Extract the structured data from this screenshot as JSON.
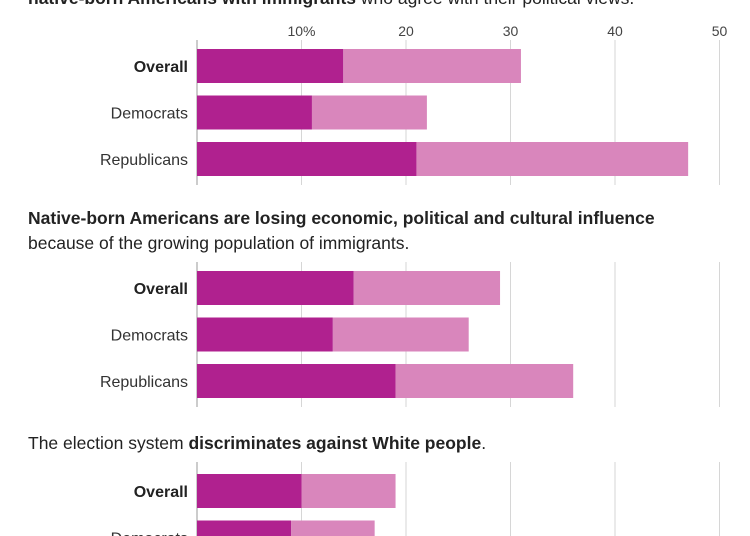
{
  "chart_data": [
    {
      "type": "bar",
      "title_segments": [
        {
          "text": "native-born Americans with immigrants",
          "bold": true
        },
        {
          "text": " who agree with their political views.",
          "bold": false
        }
      ],
      "categories": [
        "Overall",
        "Democrats",
        "Republicans"
      ],
      "series": [
        {
          "values": [
            14,
            11,
            21
          ]
        },
        {
          "values": [
            17,
            11,
            26
          ]
        }
      ],
      "x_ticks": [
        "10%",
        "20",
        "30",
        "40",
        "50"
      ],
      "xlim": [
        0,
        50
      ],
      "stacked": true,
      "grid": true
    },
    {
      "type": "bar",
      "title_lines": [
        [
          {
            "text": "Native-born Americans are losing economic, political and cultural influence",
            "bold": true
          }
        ],
        [
          {
            "text": "because of the growing population of immigrants.",
            "bold": false
          }
        ]
      ],
      "categories": [
        "Overall",
        "Democrats",
        "Republicans"
      ],
      "series": [
        {
          "values": [
            15,
            13,
            19
          ]
        },
        {
          "values": [
            14,
            13,
            17
          ]
        }
      ],
      "xlim": [
        0,
        50
      ],
      "stacked": true,
      "grid": true
    },
    {
      "type": "bar",
      "title_segments": [
        {
          "text": "The election system ",
          "bold": false
        },
        {
          "text": "discriminates against White people",
          "bold": true
        },
        {
          "text": ".",
          "bold": false
        }
      ],
      "categories": [
        "Overall",
        "Democrats"
      ],
      "series": [
        {
          "values": [
            10,
            9
          ]
        },
        {
          "values": [
            9,
            8
          ]
        }
      ],
      "xlim": [
        0,
        50
      ],
      "stacked": true,
      "grid": true
    }
  ],
  "colors": {
    "dark": "#b0218f",
    "light": "#d986bc"
  }
}
